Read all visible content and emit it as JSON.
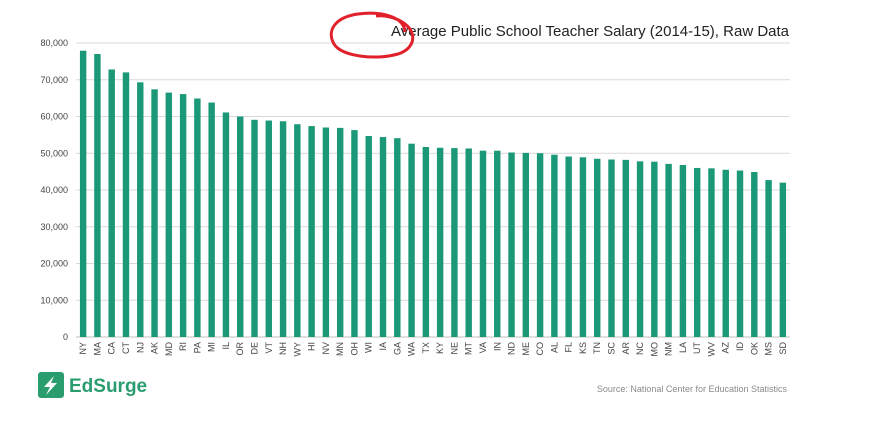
{
  "colors": {
    "bar": "#1a9878",
    "grid": "#d9d9d9",
    "annotation": "#e0202a",
    "logo": "#2a9d6f"
  },
  "branding": {
    "logo_text": "EdSurge",
    "logo_icon": "lightning-bolt-icon"
  },
  "source_note": "Source: National Center for Education Statistics",
  "chart_data": {
    "type": "bar",
    "title": "Average Public School Teacher Salary (2014-15), Raw Data",
    "xlabel": "",
    "ylabel": "",
    "ylim": [
      0,
      80000
    ],
    "yticks": [
      0,
      10000,
      20000,
      30000,
      40000,
      50000,
      60000,
      70000,
      80000
    ],
    "ytick_labels": [
      "0",
      "10,000",
      "20,000",
      "30,000",
      "40,000",
      "50,000",
      "60,000",
      "70,000",
      "80,000"
    ],
    "grid": true,
    "categories": [
      "NY",
      "MA",
      "CA",
      "CT",
      "NJ",
      "AK",
      "MD",
      "RI",
      "PA",
      "MI",
      "IL",
      "OR",
      "DE",
      "VT",
      "NH",
      "WY",
      "HI",
      "NV",
      "MN",
      "OH",
      "WI",
      "IA",
      "GA",
      "WA",
      "TX",
      "KY",
      "NE",
      "MT",
      "VA",
      "IN",
      "ND",
      "ME",
      "CO",
      "AL",
      "FL",
      "KS",
      "TN",
      "SC",
      "AR",
      "NC",
      "MO",
      "NM",
      "LA",
      "UT",
      "WV",
      "AZ",
      "ID",
      "OK",
      "MS",
      "SD"
    ],
    "values": [
      77900,
      77000,
      72800,
      72000,
      69300,
      67400,
      66500,
      66100,
      64900,
      63800,
      61100,
      60000,
      59100,
      58900,
      58700,
      57900,
      57400,
      57000,
      56900,
      56300,
      54700,
      54400,
      54100,
      52600,
      51700,
      51500,
      51400,
      51300,
      50700,
      50700,
      50200,
      50100,
      50000,
      49600,
      49100,
      48900,
      48500,
      48300,
      48200,
      47800,
      47700,
      47100,
      46800,
      46000,
      45900,
      45500,
      45300,
      44900,
      42700,
      42000
    ]
  },
  "annotation": {
    "type": "circle",
    "target": "title-first-word"
  }
}
